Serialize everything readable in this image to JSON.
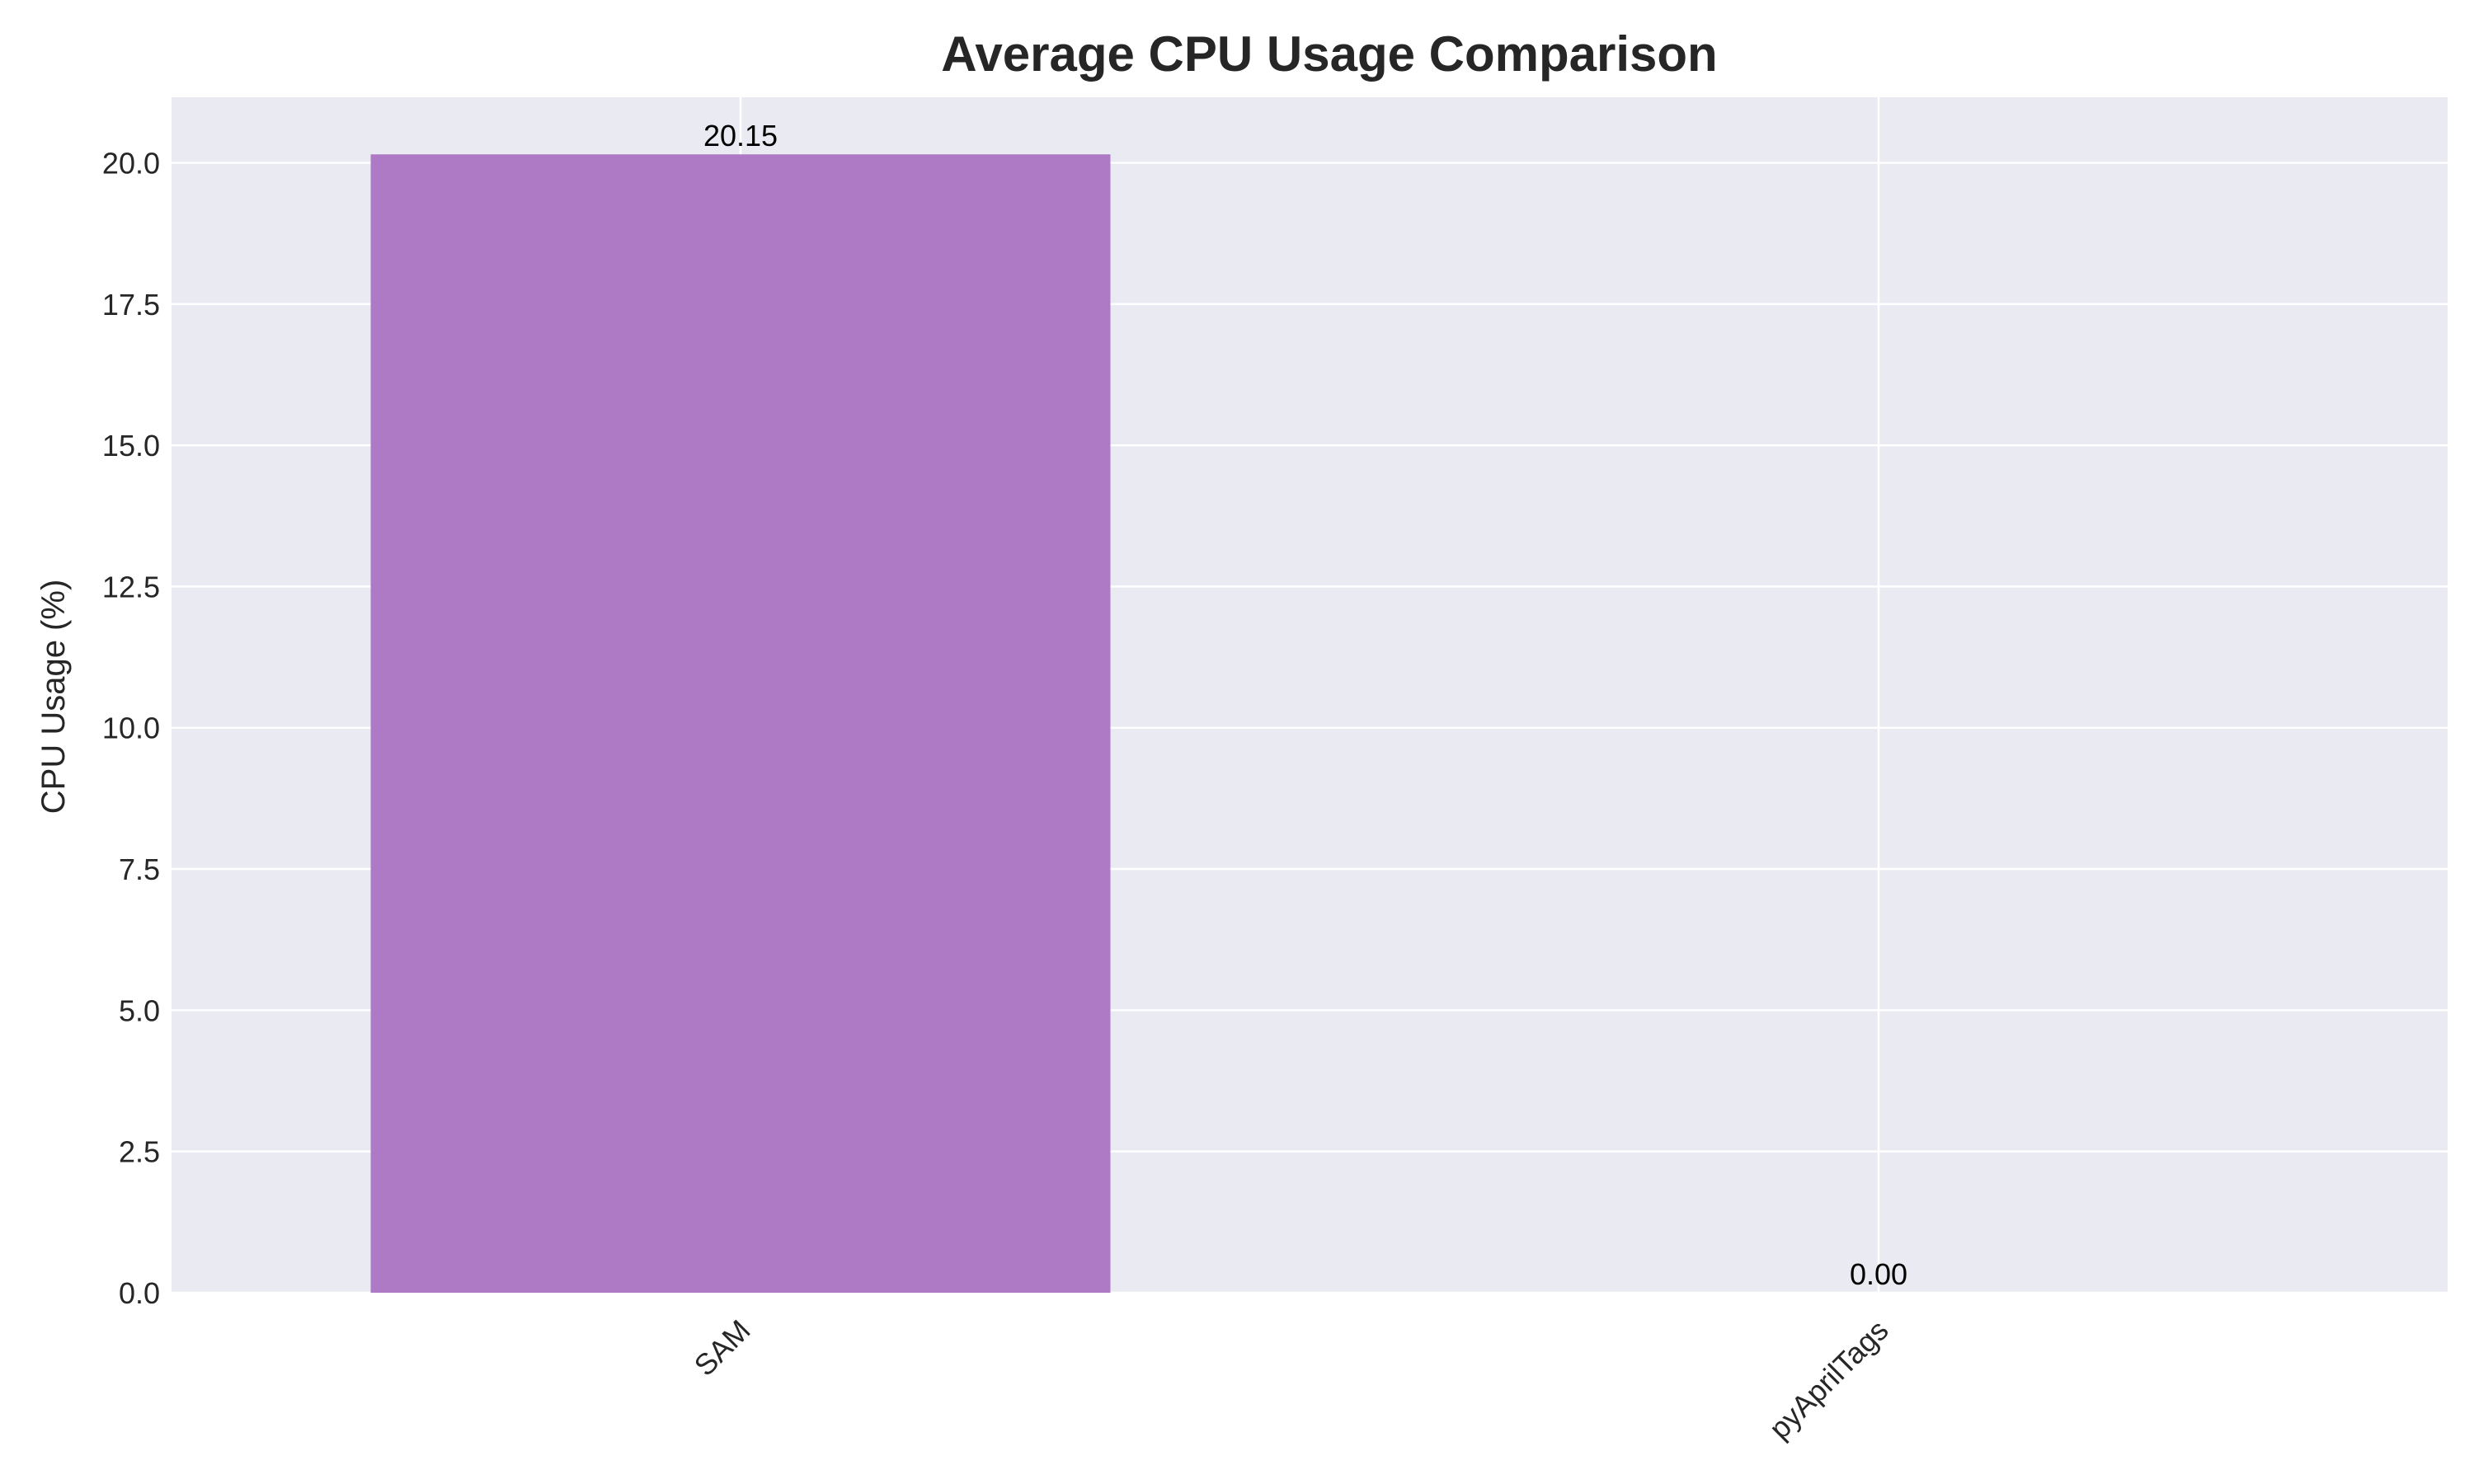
{
  "chart_data": {
    "type": "bar",
    "title": "Average CPU Usage Comparison",
    "xlabel": "",
    "ylabel": "CPU Usage (%)",
    "categories": [
      "SAM",
      "pyAprilTags"
    ],
    "values": [
      20.15,
      0.0
    ],
    "data_labels": [
      "20.15",
      "0.00"
    ],
    "ylim": [
      0,
      21.16
    ],
    "yticks": [
      0,
      2.5,
      5,
      7.5,
      10,
      12.5,
      15,
      17.5,
      20
    ],
    "ytick_labels": [
      "0.0",
      "2.5",
      "5.0",
      "7.5",
      "10.0",
      "12.5",
      "15.0",
      "17.5",
      "20.0"
    ],
    "xtick_rotation": 45,
    "grid": true,
    "legend": "none",
    "colors": {
      "bar": "#af7ac5",
      "plot_background": "#eaeaf2",
      "grid": "#ffffff",
      "text": "#262626"
    }
  }
}
